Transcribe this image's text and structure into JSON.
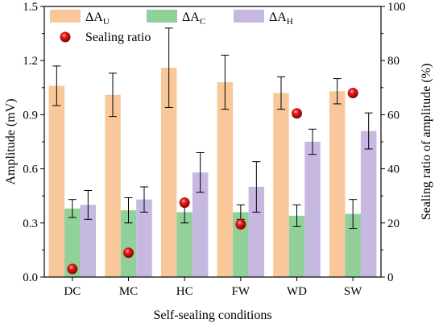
{
  "chart_data": {
    "type": "bar",
    "categories": [
      "DC",
      "MC",
      "HC",
      "FW",
      "WD",
      "SW"
    ],
    "series": [
      {
        "name": "ΔA",
        "subscript": "U",
        "values": [
          1.06,
          1.01,
          1.16,
          1.08,
          1.02,
          1.03
        ],
        "errors": [
          0.11,
          0.12,
          0.22,
          0.15,
          0.09,
          0.07
        ],
        "color": "#f9c89a"
      },
      {
        "name": "ΔA",
        "subscript": "C",
        "values": [
          0.38,
          0.37,
          0.36,
          0.36,
          0.34,
          0.35
        ],
        "errors": [
          0.05,
          0.07,
          0.06,
          0.04,
          0.06,
          0.08
        ],
        "color": "#92d09a"
      },
      {
        "name": "ΔA",
        "subscript": "H",
        "values": [
          0.4,
          0.43,
          0.58,
          0.5,
          0.75,
          0.81
        ],
        "errors": [
          0.08,
          0.07,
          0.11,
          0.14,
          0.07,
          0.1
        ],
        "color": "#c7b8e2"
      }
    ],
    "sealing_ratio": {
      "name": "Sealing ratio",
      "values": [
        3,
        9,
        27.5,
        19.5,
        60.5,
        68
      ],
      "color": "#e21b1b"
    },
    "xlabel": "Self-sealing conditions",
    "ylabel": "Amplitude (mV)",
    "y2label": "Sealing ratio of amplitude (%)",
    "ylim": [
      0,
      1.5
    ],
    "y2lim": [
      0,
      100
    ],
    "yticks": [
      "0.0",
      "0.3",
      "0.6",
      "0.9",
      "1.2",
      "1.5"
    ],
    "y2ticks": [
      "0",
      "20",
      "40",
      "60",
      "80",
      "100"
    ],
    "grid": false,
    "legend": "top"
  }
}
